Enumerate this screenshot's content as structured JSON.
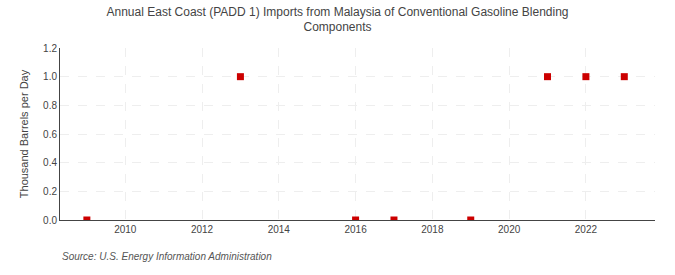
{
  "chart_data": {
    "type": "scatter",
    "title": "Annual East Coast (PADD 1) Imports from Malaysia of Conventional Gasoline Blending\nComponents",
    "ylabel": "Thousand Barrels per Day",
    "annotations": [
      "Source: U.S. Energy Information Administration"
    ],
    "x": [
      2009,
      2013,
      2016,
      2017,
      2019,
      2021,
      2022,
      2023
    ],
    "values": [
      0.0,
      1.0,
      0.0,
      0.0,
      0.0,
      1.0,
      1.0,
      1.0
    ],
    "color": "#cc0000",
    "marker": "square",
    "xlim": [
      2008.3,
      2023.8
    ],
    "ylim": [
      0.0,
      1.2
    ],
    "xticks": [
      2010,
      2012,
      2014,
      2016,
      2018,
      2020,
      2022
    ],
    "yticks": [
      {
        "value": 0.0,
        "label": "0.0"
      },
      {
        "value": 0.2,
        "label": "0.2"
      },
      {
        "value": 0.4,
        "label": "0.4"
      },
      {
        "value": 0.6,
        "label": "0.6"
      },
      {
        "value": 0.8,
        "label": "0.8"
      },
      {
        "value": 1.0,
        "label": "1.0"
      },
      {
        "value": 1.2,
        "label": "1.2"
      }
    ],
    "grid": true
  }
}
